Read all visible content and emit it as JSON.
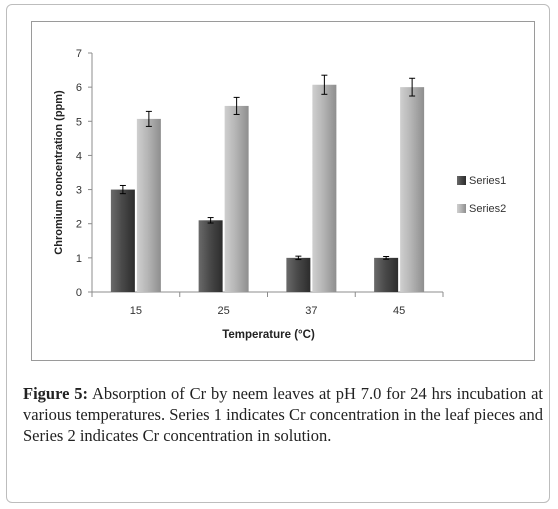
{
  "chart_data": {
    "type": "bar",
    "categories": [
      "15",
      "25",
      "37",
      "45"
    ],
    "xlabel": "Temperature (°C)",
    "ylabel": "Chromium concentration (ppm)",
    "ylim": [
      0,
      7
    ],
    "yticks": [
      "0",
      "1",
      "2",
      "3",
      "4",
      "5",
      "6",
      "7"
    ],
    "grid": false,
    "legend_position": "right",
    "series": [
      {
        "name": "Series1",
        "values": [
          3.0,
          2.1,
          1.0,
          1.0
        ],
        "errors": [
          0.12,
          0.08,
          0.05,
          0.04
        ],
        "color": "#4a4a4a"
      },
      {
        "name": "Series2",
        "values": [
          5.07,
          5.45,
          6.07,
          6.0
        ],
        "errors": [
          0.22,
          0.25,
          0.28,
          0.26
        ],
        "color": "#b0b0b0"
      }
    ]
  },
  "caption": {
    "label": "Figure 5:",
    "text": " Absorption of Cr by neem leaves at pH 7.0 for 24 hrs incubation at various temperatures. Series 1 indicates Cr concentration in the leaf pieces and Series 2 indicates Cr concentration in solution."
  }
}
